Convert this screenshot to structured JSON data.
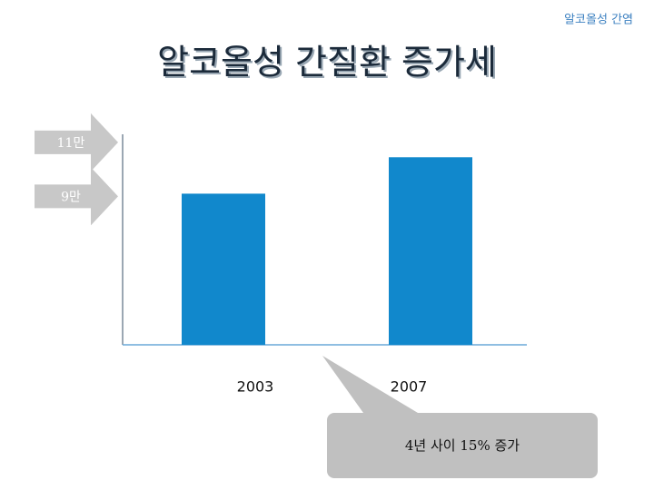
{
  "header": "알코올성 간염",
  "chart_data": {
    "type": "bar",
    "title": "알코올성 간질환 증가세",
    "categories": [
      "2003",
      "2007"
    ],
    "values": [
      91000,
      104500
    ],
    "color": "#1188cc",
    "ylim": [
      35000,
      113000
    ],
    "yticks": [
      {
        "value": 110000,
        "label": "11만"
      },
      {
        "value": 90000,
        "label": "9만"
      }
    ],
    "annotation": "4년 사이 15% 증가"
  }
}
